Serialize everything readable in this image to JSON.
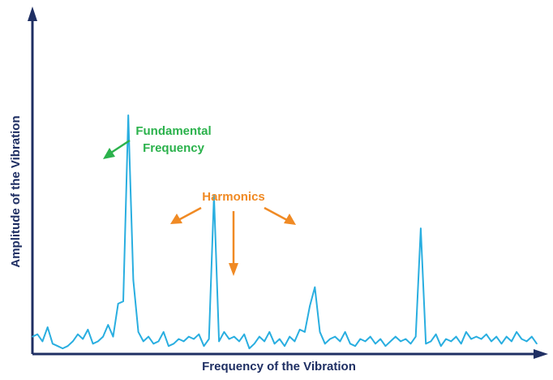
{
  "colors": {
    "axis": "#1f2f63",
    "spectrum": "#29aee0",
    "fundamental": "#2bb24c",
    "harmonics": "#f08a24"
  },
  "chart_data": {
    "type": "line",
    "title": "",
    "xlabel": "Frequency of the Vibration",
    "ylabel": "Amplitude of the Vibration",
    "grid": false,
    "legend": "none",
    "annotations": {
      "fundamental": [
        "Fundamental",
        "Frequency"
      ],
      "harmonics": "Harmonics"
    },
    "series": [
      {
        "x": [
          0,
          1,
          2,
          3,
          4,
          5,
          6,
          7,
          8,
          9,
          10,
          11,
          12,
          13,
          14,
          15,
          16,
          17,
          18,
          19,
          20,
          21,
          22,
          23,
          24,
          25,
          26,
          27,
          28,
          29,
          30,
          31,
          32,
          33,
          34,
          35,
          36,
          37,
          38,
          39,
          40,
          41,
          42,
          43,
          44,
          45,
          46,
          47,
          48,
          49,
          50,
          51,
          52,
          53,
          54,
          55,
          56,
          57,
          58,
          59,
          60,
          61,
          62,
          63,
          64,
          65,
          66,
          67,
          68,
          69,
          70,
          71,
          72,
          73,
          74,
          75,
          76,
          77,
          78,
          79,
          80,
          81,
          82,
          83,
          84,
          85,
          86,
          87,
          88,
          89,
          90,
          91,
          92,
          93,
          94,
          95,
          96,
          97,
          98,
          99,
          100
        ],
        "y": [
          6,
          7,
          4,
          10,
          3,
          2,
          1,
          2,
          4,
          7,
          5,
          9,
          3,
          4,
          6,
          11,
          6,
          20,
          21,
          100,
          30,
          8,
          4,
          6,
          3,
          4,
          8,
          2,
          3,
          5,
          4,
          6,
          5,
          7,
          2,
          5,
          66,
          4,
          8,
          5,
          6,
          4,
          7,
          1,
          3,
          6,
          4,
          8,
          3,
          5,
          2,
          6,
          4,
          9,
          8,
          19,
          27,
          8,
          3,
          5,
          6,
          4,
          8,
          3,
          2,
          5,
          4,
          6,
          3,
          5,
          2,
          4,
          6,
          4,
          5,
          3,
          6,
          52,
          3,
          4,
          7,
          2,
          5,
          4,
          6,
          3,
          8,
          5,
          6,
          5,
          7,
          4,
          6,
          3,
          6,
          4,
          8,
          5,
          4,
          6,
          3
        ]
      }
    ]
  }
}
